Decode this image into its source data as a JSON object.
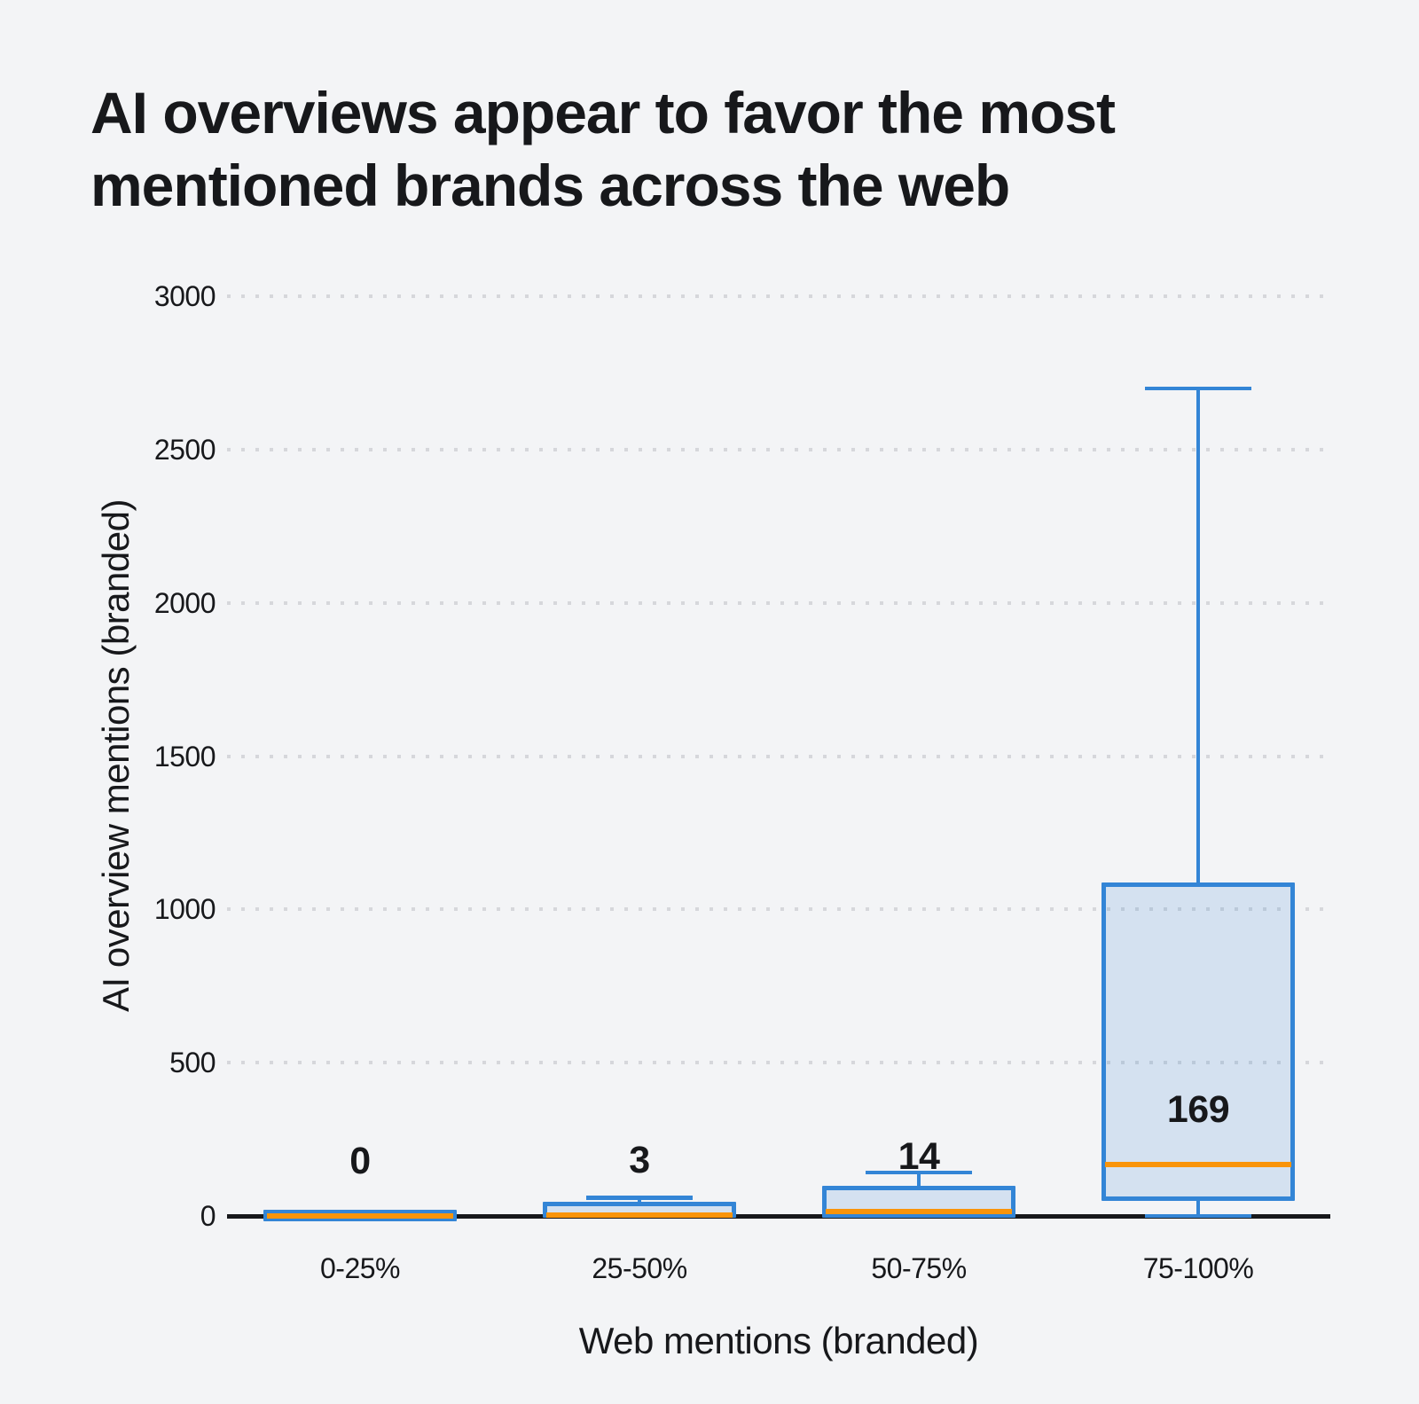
{
  "page": {
    "background": "#f3f4f6"
  },
  "title": {
    "text": "AI overviews appear to favor the most mentioned brands across the web",
    "lines": [
      "AI overviews appear to favor the most",
      "mentioned brands across the web"
    ]
  },
  "chart_data": {
    "type": "boxplot",
    "title": "AI overviews appear to favor the most mentioned brands across the web",
    "xlabel": "Web mentions (branded)",
    "ylabel": "AI overview mentions (branded)",
    "categories": [
      "0-25%",
      "25-50%",
      "50-75%",
      "75-100%"
    ],
    "yticks": [
      0,
      500,
      1000,
      1500,
      2000,
      2500,
      3000
    ],
    "ylim": [
      0,
      3000
    ],
    "grid": {
      "horizontal": true,
      "style": "dotted"
    },
    "legend": null,
    "series": [
      {
        "category": "0-25%",
        "whisker_low": 0,
        "q1": 0,
        "median": 0,
        "q3": 14,
        "whisker_high": 14,
        "median_label": "0"
      },
      {
        "category": "25-50%",
        "whisker_low": 0,
        "q1": 0,
        "median": 3,
        "q3": 40,
        "whisker_high": 60,
        "median_label": "3"
      },
      {
        "category": "50-75%",
        "whisker_low": 0,
        "q1": 0,
        "median": 14,
        "q3": 92,
        "whisker_high": 142,
        "median_label": "14"
      },
      {
        "category": "75-100%",
        "whisker_low": 0,
        "q1": 55,
        "median": 169,
        "q3": 1080,
        "whisker_high": 2700,
        "median_label": "169"
      }
    ],
    "colors": {
      "box_border": "#3385d6",
      "box_fill": "rgba(51,133,214,0.16)",
      "median_line": "#f9940a",
      "gridline": "#d6d7db",
      "axis_line": "#17181b",
      "text": "#17181b",
      "background": "#f3f4f6"
    }
  }
}
